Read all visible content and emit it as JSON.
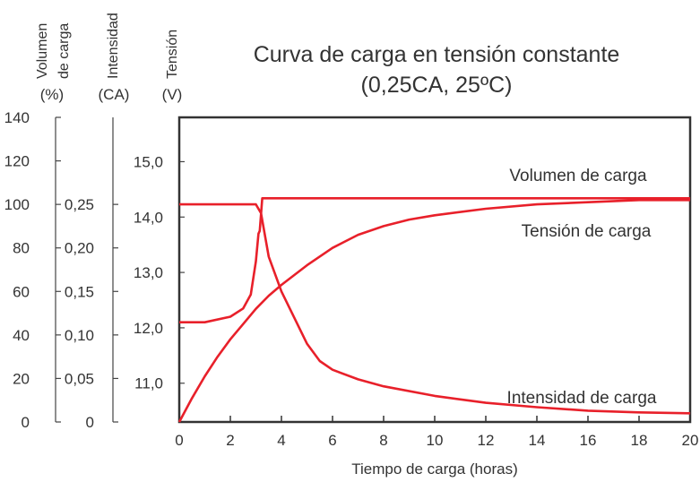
{
  "chart_data": {
    "type": "line",
    "title": "Curva de carga en tensión constante",
    "subtitle": "(0,25CA, 25ºC)",
    "xlabel": "Tiempo de carga (horas)",
    "xlim": [
      0,
      20
    ],
    "x_ticks": [
      "0",
      "2",
      "4",
      "6",
      "8",
      "10",
      "12",
      "14",
      "16",
      "18",
      "20"
    ],
    "grid": false,
    "axes": [
      {
        "label_lines": [
          "Volumen",
          "de carga"
        ],
        "unit": "(%)",
        "range": [
          0,
          140
        ],
        "ticks": [
          "0",
          "20",
          "40",
          "60",
          "80",
          "100",
          "120",
          "140"
        ]
      },
      {
        "label_lines": [
          "Intensidad"
        ],
        "unit": "(CA)",
        "range": [
          0,
          0.35
        ],
        "ticks": [
          "0",
          "0,05",
          "0,10",
          "0,15",
          "0,20",
          "0,25"
        ]
      },
      {
        "label_lines": [
          "Tensión"
        ],
        "unit": "(V)",
        "range": [
          10.3,
          15.8
        ],
        "ticks": [
          "11,0",
          "12,0",
          "13,0",
          "14,0",
          "15,0"
        ]
      }
    ],
    "series": [
      {
        "name": "Volumen de carga",
        "axis": 0,
        "x": [
          0,
          0.5,
          1,
          1.5,
          2,
          2.5,
          3,
          3.5,
          4,
          5,
          6,
          7,
          8,
          9,
          10,
          12,
          14,
          16,
          18,
          20
        ],
        "values": [
          0,
          11,
          21,
          30,
          38,
          45,
          52,
          58,
          63,
          72,
          80,
          86,
          90,
          93,
          95,
          98,
          100,
          101,
          102,
          102
        ]
      },
      {
        "name": "Tensión de carga",
        "axis": 2,
        "x": [
          0,
          1,
          2,
          2.5,
          2.8,
          3.0,
          3.1,
          3.15,
          3.25,
          3.3,
          4,
          6,
          8,
          10,
          12,
          14,
          16,
          18,
          20
        ],
        "values": [
          12.1,
          12.1,
          12.2,
          12.35,
          12.6,
          13.2,
          13.7,
          13.75,
          14.34,
          14.34,
          14.34,
          14.34,
          14.34,
          14.34,
          14.34,
          14.34,
          14.34,
          14.34,
          14.34
        ]
      },
      {
        "name": "Intensidad de carga",
        "axis": 1,
        "x": [
          0,
          1,
          2,
          2.5,
          3.0,
          3.2,
          3.5,
          4,
          5,
          5.5,
          6,
          7,
          8,
          10,
          12,
          14,
          16,
          18,
          20
        ],
        "values": [
          0.25,
          0.25,
          0.25,
          0.25,
          0.25,
          0.24,
          0.19,
          0.15,
          0.09,
          0.07,
          0.06,
          0.049,
          0.041,
          0.03,
          0.022,
          0.017,
          0.013,
          0.011,
          0.01
        ]
      }
    ],
    "colors": {
      "line": "#e8202a",
      "frame": "#333333",
      "text": "#333333"
    }
  }
}
